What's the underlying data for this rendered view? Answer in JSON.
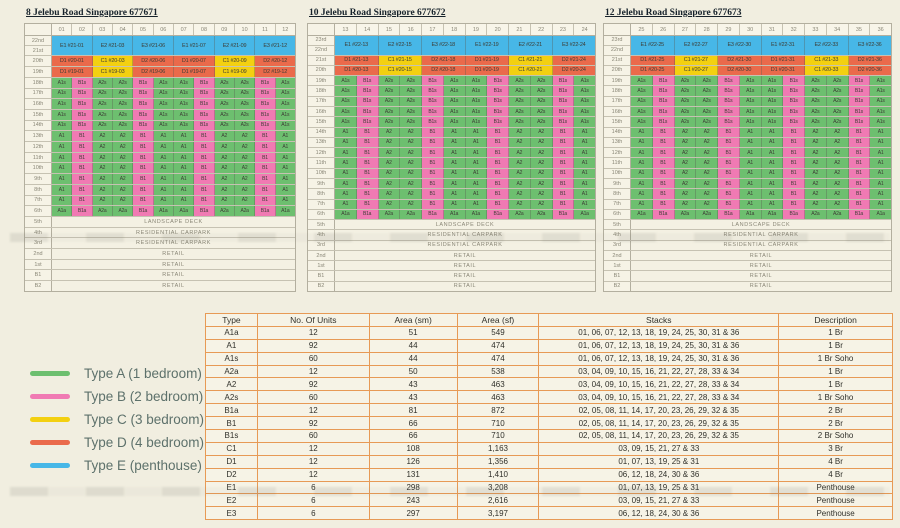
{
  "page": {
    "background": "#f1eee0"
  },
  "colors": {
    "type_a": "#6dbf6f",
    "type_b": "#f07ab3",
    "type_c": "#f3d011",
    "type_d": "#ea6a4b",
    "type_e": "#47b7e7",
    "table_border": "#e79a55",
    "facility_bg": "#f4f1e3"
  },
  "unit_pattern": [
    "A1",
    "B1",
    "A2",
    "A2",
    "B1",
    "A1",
    "A1",
    "B1",
    "A2",
    "A2",
    "B1",
    "A1"
  ],
  "buildings": [
    {
      "title": "8 Jelebu Road Singapore 677671",
      "stack_numbers": [
        "01",
        "02",
        "03",
        "04",
        "05",
        "06",
        "07",
        "08",
        "09",
        "10",
        "11",
        "12"
      ],
      "rows": [
        {
          "type": "ph",
          "labels": [
            "22nd",
            "21st"
          ],
          "units": [
            "E1 #21-01",
            "E2 #21-03",
            "E3 #21-06",
            "E1 #21-07",
            "E2 #21-09",
            "E3 #21-12"
          ]
        },
        {
          "type": "dc",
          "label": "20th",
          "units": [
            "D1 #20-01",
            "C1 #20-03",
            "D2 #20-06",
            "D1 #20-07",
            "C1 #20-09",
            "D2 #20-12"
          ]
        },
        {
          "type": "dc",
          "label": "19th",
          "units": [
            "D1 #19-01",
            "C1 #19-03",
            "D2 #19-06",
            "D1 #19-07",
            "C1 #19-09",
            "D2 #19-12"
          ]
        },
        {
          "type": "u",
          "label": "18th",
          "suffix": "s"
        },
        {
          "type": "u",
          "label": "17th",
          "suffix": "s"
        },
        {
          "type": "u",
          "label": "16th",
          "suffix": "s"
        },
        {
          "type": "u",
          "label": "15th",
          "suffix": "s"
        },
        {
          "type": "u",
          "label": "14th",
          "suffix": "s"
        },
        {
          "type": "u",
          "label": "13th",
          "suffix": ""
        },
        {
          "type": "u",
          "label": "12th",
          "suffix": ""
        },
        {
          "type": "u",
          "label": "11th",
          "suffix": ""
        },
        {
          "type": "u",
          "label": "10th",
          "suffix": ""
        },
        {
          "type": "u",
          "label": "9th",
          "suffix": ""
        },
        {
          "type": "u",
          "label": "8th",
          "suffix": ""
        },
        {
          "type": "u",
          "label": "7th",
          "suffix": ""
        },
        {
          "type": "u",
          "label": "6th",
          "suffix": "a"
        },
        {
          "type": "full",
          "label": "5th",
          "text": "LANDSCAPE DECK"
        },
        {
          "type": "full",
          "label": "4th",
          "text": "RESIDENTIAL CARPARK"
        },
        {
          "type": "full",
          "label": "3rd",
          "text": "RESIDENTIAL CARPARK"
        },
        {
          "type": "full",
          "label": "2nd",
          "text": "RETAIL"
        },
        {
          "type": "full",
          "label": "1st",
          "text": "RETAIL"
        },
        {
          "type": "full",
          "label": "B1",
          "text": "RETAIL"
        },
        {
          "type": "full",
          "label": "B2",
          "text": "RETAIL"
        }
      ]
    },
    {
      "title": "10 Jelebu Road Singapore 677672",
      "stack_numbers": [
        "13",
        "14",
        "15",
        "16",
        "17",
        "18",
        "19",
        "20",
        "21",
        "22",
        "23",
        "24"
      ],
      "rows": [
        {
          "type": "ph",
          "labels": [
            "23rd",
            "22nd"
          ],
          "units": [
            "E1 #22-13",
            "E2 #22-15",
            "E3 #22-18",
            "E1 #22-19",
            "E2 #22-21",
            "E3 #22-24"
          ]
        },
        {
          "type": "dc",
          "label": "21st",
          "units": [
            "D1 #21-13",
            "C1 #21-15",
            "D2 #21-18",
            "D1 #21-19",
            "C1 #21-21",
            "D2 #21-24"
          ]
        },
        {
          "type": "dc",
          "label": "20th",
          "units": [
            "D1 #20-13",
            "C1 #20-15",
            "D2 #20-18",
            "D1 #20-19",
            "C1 #20-21",
            "D2 #20-24"
          ]
        },
        {
          "type": "u",
          "label": "19th",
          "suffix": "s"
        },
        {
          "type": "u",
          "label": "18th",
          "suffix": "s"
        },
        {
          "type": "u",
          "label": "17th",
          "suffix": "s"
        },
        {
          "type": "u",
          "label": "16th",
          "suffix": "s"
        },
        {
          "type": "u",
          "label": "15th",
          "suffix": "s"
        },
        {
          "type": "u",
          "label": "14th",
          "suffix": ""
        },
        {
          "type": "u",
          "label": "13th",
          "suffix": ""
        },
        {
          "type": "u",
          "label": "12th",
          "suffix": ""
        },
        {
          "type": "u",
          "label": "11th",
          "suffix": ""
        },
        {
          "type": "u",
          "label": "10th",
          "suffix": ""
        },
        {
          "type": "u",
          "label": "9th",
          "suffix": ""
        },
        {
          "type": "u",
          "label": "8th",
          "suffix": ""
        },
        {
          "type": "u",
          "label": "7th",
          "suffix": ""
        },
        {
          "type": "u",
          "label": "6th",
          "suffix": "a"
        },
        {
          "type": "full",
          "label": "5th",
          "text": "LANDSCAPE DECK"
        },
        {
          "type": "full",
          "label": "4th",
          "text": "RESIDENTIAL CARPARK"
        },
        {
          "type": "full",
          "label": "3rd",
          "text": "RESIDENTIAL CARPARK"
        },
        {
          "type": "full",
          "label": "2nd",
          "text": "RETAIL"
        },
        {
          "type": "full",
          "label": "1st",
          "text": "RETAIL"
        },
        {
          "type": "full",
          "label": "B1",
          "text": "RETAIL"
        },
        {
          "type": "full",
          "label": "B2",
          "text": "RETAIL"
        }
      ]
    },
    {
      "title": "12 Jelebu Road Singapore 677673",
      "stack_numbers": [
        "25",
        "26",
        "27",
        "28",
        "29",
        "30",
        "31",
        "32",
        "33",
        "34",
        "35",
        "36"
      ],
      "rows": [
        {
          "type": "ph",
          "labels": [
            "23rd",
            "22nd"
          ],
          "units": [
            "E1 #22-25",
            "E2 #22-27",
            "E3 #22-30",
            "E1 #22-31",
            "E2 #22-33",
            "E3 #22-36"
          ]
        },
        {
          "type": "dc",
          "label": "21st",
          "units": [
            "D1 #21-25",
            "C1 #21-27",
            "D2 #21-30",
            "D1 #21-31",
            "C1 #21-33",
            "D2 #21-36"
          ]
        },
        {
          "type": "dc",
          "label": "20th",
          "units": [
            "D1 #20-25",
            "C1 #20-27",
            "D2 #20-30",
            "D1 #20-31",
            "C1 #20-33",
            "D2 #20-36"
          ]
        },
        {
          "type": "u",
          "label": "19th",
          "suffix": "s"
        },
        {
          "type": "u",
          "label": "18th",
          "suffix": "s"
        },
        {
          "type": "u",
          "label": "17th",
          "suffix": "s"
        },
        {
          "type": "u",
          "label": "16th",
          "suffix": "s"
        },
        {
          "type": "u",
          "label": "15th",
          "suffix": "s"
        },
        {
          "type": "u",
          "label": "14th",
          "suffix": ""
        },
        {
          "type": "u",
          "label": "13th",
          "suffix": ""
        },
        {
          "type": "u",
          "label": "12th",
          "suffix": ""
        },
        {
          "type": "u",
          "label": "11th",
          "suffix": ""
        },
        {
          "type": "u",
          "label": "10th",
          "suffix": ""
        },
        {
          "type": "u",
          "label": "9th",
          "suffix": ""
        },
        {
          "type": "u",
          "label": "8th",
          "suffix": ""
        },
        {
          "type": "u",
          "label": "7th",
          "suffix": ""
        },
        {
          "type": "u",
          "label": "6th",
          "suffix": "a"
        },
        {
          "type": "full",
          "label": "5th",
          "text": "LANDSCAPE DECK"
        },
        {
          "type": "full",
          "label": "4th",
          "text": "RESIDENTIAL CARPARK"
        },
        {
          "type": "full",
          "label": "3rd",
          "text": "RESIDENTIAL CARPARK"
        },
        {
          "type": "full",
          "label": "2nd",
          "text": "RETAIL"
        },
        {
          "type": "full",
          "label": "1st",
          "text": "RETAIL"
        },
        {
          "type": "full",
          "label": "B1",
          "text": "RETAIL"
        },
        {
          "type": "full",
          "label": "B2",
          "text": "RETAIL"
        }
      ]
    }
  ],
  "legend": {
    "items": [
      {
        "type": "A",
        "color_key": "type_a",
        "label": "Type A (1 bedroom)"
      },
      {
        "type": "B",
        "color_key": "type_b",
        "label": "Type B (2 bedroom)"
      },
      {
        "type": "C",
        "color_key": "type_c",
        "label": "Type C (3 bedroom)"
      },
      {
        "type": "D",
        "color_key": "type_d",
        "label": "Type D (4 bedroom)"
      },
      {
        "type": "E",
        "color_key": "type_e",
        "label": "Type E (penthouse)"
      }
    ]
  },
  "table": {
    "headers": [
      "Type",
      "No. Of Units",
      "Area (sm)",
      "Area (sf)",
      "Stacks",
      "Description"
    ],
    "rows": [
      [
        "A1a",
        "12",
        "51",
        "549",
        "01, 06, 07, 12, 13, 18, 19, 24, 25, 30, 31 & 36",
        "1 Br"
      ],
      [
        "A1",
        "92",
        "44",
        "474",
        "01, 06, 07, 12, 13, 18, 19, 24, 25, 30, 31 & 36",
        "1 Br"
      ],
      [
        "A1s",
        "60",
        "44",
        "474",
        "01, 06, 07, 12, 13, 18, 19, 24, 25, 30, 31 & 36",
        "1 Br Soho"
      ],
      [
        "A2a",
        "12",
        "50",
        "538",
        "03, 04, 09, 10, 15, 16, 21, 22, 27, 28, 33 & 34",
        "1 Br"
      ],
      [
        "A2",
        "92",
        "43",
        "463",
        "03, 04, 09, 10, 15, 16, 21, 22, 27, 28, 33 & 34",
        "1 Br"
      ],
      [
        "A2s",
        "60",
        "43",
        "463",
        "03, 04, 09, 10, 15, 16, 21, 22, 27, 28, 33 & 34",
        "1 Br Soho"
      ],
      [
        "B1a",
        "12",
        "81",
        "872",
        "02, 05, 08, 11, 14, 17, 20, 23, 26, 29, 32 & 35",
        "2 Br"
      ],
      [
        "B1",
        "92",
        "66",
        "710",
        "02, 05, 08, 11, 14, 17, 20, 23, 26, 29, 32 & 35",
        "2 Br"
      ],
      [
        "B1s",
        "60",
        "66",
        "710",
        "02, 05, 08, 11, 14, 17, 20, 23, 26, 29, 32 & 35",
        "2 Br Soho"
      ],
      [
        "C1",
        "12",
        "108",
        "1,163",
        "03, 09, 15, 21, 27 & 33",
        "3 Br"
      ],
      [
        "D1",
        "12",
        "126",
        "1,356",
        "01, 07, 13, 19, 25 & 31",
        "4 Br"
      ],
      [
        "D2",
        "12",
        "131",
        "1,410",
        "06, 12, 18, 24, 30 & 36",
        "4 Br"
      ],
      [
        "E1",
        "6",
        "298",
        "3,208",
        "01, 07, 13, 19, 25 & 31",
        "Penthouse"
      ],
      [
        "E2",
        "6",
        "243",
        "2,616",
        "03, 09, 15, 21, 27 & 33",
        "Penthouse"
      ],
      [
        "E3",
        "6",
        "297",
        "3,197",
        "06, 12, 18, 24, 30 & 36",
        "Penthouse"
      ]
    ]
  }
}
